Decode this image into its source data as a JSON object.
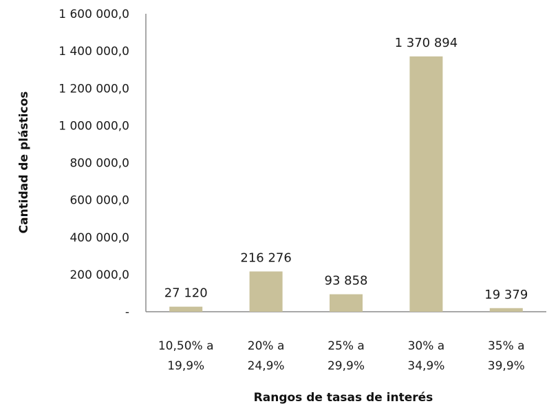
{
  "chart_data": {
    "type": "bar",
    "categories": [
      [
        "10,50% a",
        "19,9%"
      ],
      [
        "20% a",
        "24,9%"
      ],
      [
        "25% a",
        "29,9%"
      ],
      [
        "30% a",
        "34,9%"
      ],
      [
        "35% a",
        "39,9%"
      ]
    ],
    "values": [
      27120,
      216276,
      93858,
      1370894,
      19379
    ],
    "data_labels": [
      "27 120",
      "216 276",
      "93 858",
      "1 370 894",
      "19 379"
    ],
    "ylabel": "Cantidad de plásticos",
    "xlabel": "Rangos de tasas de interés",
    "ylim": [
      0,
      1600000
    ],
    "yticks": [
      0,
      200000,
      400000,
      600000,
      800000,
      1000000,
      1200000,
      1400000,
      1600000
    ],
    "ytick_labels": [
      "-",
      "200 000,0",
      "400 000,0",
      "600 000,0",
      "800 000,0",
      "1 000 000,0",
      "1 200 000,0",
      "1 400 000,0",
      "1 600 000,0"
    ],
    "grid": false,
    "legend": "none",
    "bar_color": "#c9c19a"
  }
}
